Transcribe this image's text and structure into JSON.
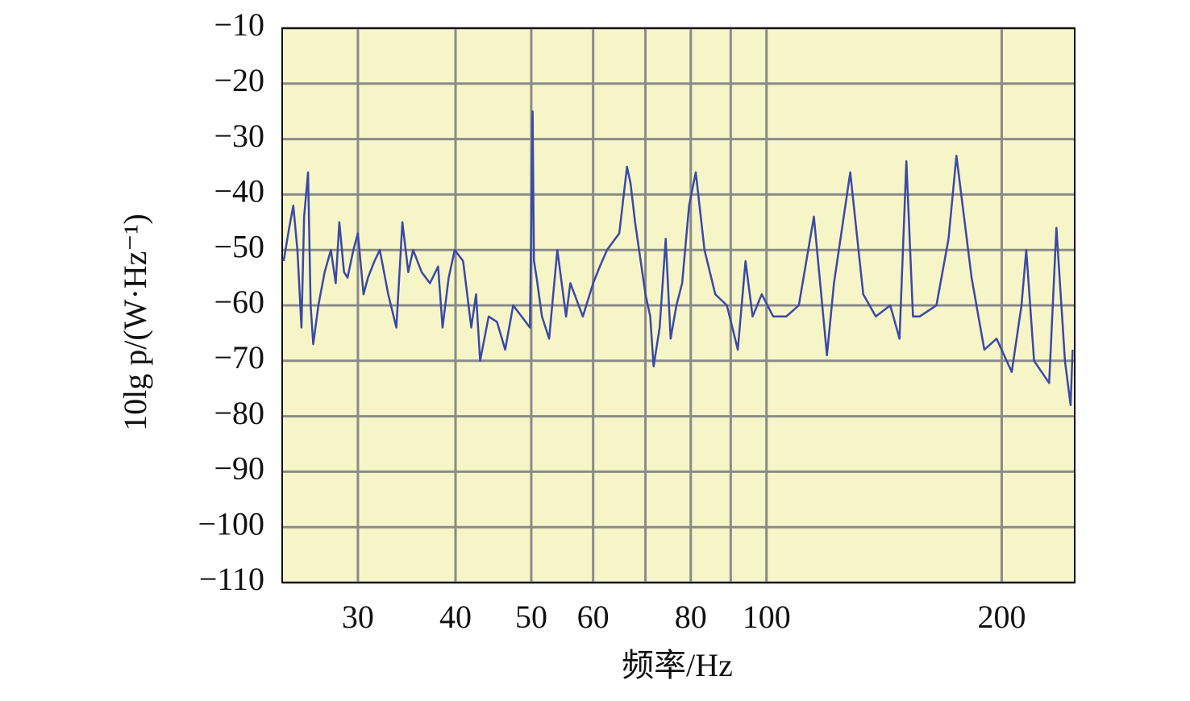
{
  "chart_data": {
    "type": "line",
    "x_label": "频率/Hz",
    "y_label": "10lg p/(W·Hz⁻¹)",
    "x_scale": "log",
    "xlim": [
      24,
      248
    ],
    "ylim": [
      -110,
      -10
    ],
    "xticks": [
      30,
      40,
      50,
      60,
      80,
      100,
      200
    ],
    "xminor": [
      70,
      90
    ],
    "yticks": [
      {
        "value": -10,
        "label": "−10"
      },
      {
        "value": -20,
        "label": "−20"
      },
      {
        "value": -30,
        "label": "−30"
      },
      {
        "value": -40,
        "label": "−40"
      },
      {
        "value": -50,
        "label": "−50"
      },
      {
        "value": -60,
        "label": "−60"
      },
      {
        "value": -70,
        "label": "−70"
      },
      {
        "value": -80,
        "label": "−80"
      },
      {
        "value": -90,
        "label": "−90"
      },
      {
        "value": -100,
        "label": "−100"
      },
      {
        "value": -110,
        "label": "−110"
      }
    ],
    "grid": true,
    "background": "#f6f5c8",
    "series": [
      {
        "color": "#3b48a6",
        "x": [
          24.1,
          24.5,
          24.8,
          25.1,
          25.4,
          25.6,
          25.9,
          26.1,
          26.3,
          26.7,
          27.2,
          27.7,
          28.1,
          28.4,
          28.8,
          29.1,
          29.6,
          30.0,
          30.5,
          30.9,
          31.5,
          32.0,
          32.8,
          33.6,
          34.2,
          34.8,
          35.3,
          36.2,
          37.1,
          38.0,
          38.5,
          39.2,
          39.9,
          40.9,
          41.4,
          41.9,
          42.5,
          43.0,
          44.1,
          45.2,
          46.3,
          47.4,
          48.6,
          49.8,
          50.2,
          50.4,
          50.8,
          51.6,
          52.7,
          54.0,
          55.4,
          56.1,
          56.8,
          58.2,
          60.0,
          61.2,
          62.5,
          64.8,
          66.3,
          67.0,
          67.9,
          70.0,
          71.0,
          71.7,
          73.0,
          74.3,
          75.4,
          76.7,
          78.0,
          79.6,
          81.2,
          83.3,
          86.0,
          89.0,
          91.9,
          94.0,
          96.0,
          98.6,
          102,
          106,
          110,
          115,
          119.5,
          122,
          128,
          133,
          138,
          144,
          148,
          151,
          154,
          157,
          165,
          171,
          175,
          183,
          190,
          197,
          206,
          212,
          215,
          220,
          230,
          235,
          241,
          245,
          246.5
        ],
        "values": [
          -52,
          -46,
          -42,
          -50,
          -64,
          -44,
          -36,
          -60,
          -67,
          -60,
          -54,
          -50,
          -56,
          -45,
          -54,
          -55,
          -50,
          -47,
          -58,
          -55,
          -52,
          -50,
          -58,
          -64,
          -45,
          -54,
          -50,
          -54,
          -56,
          -53,
          -64,
          -55,
          -50,
          -52,
          -58,
          -64,
          -58,
          -70,
          -62,
          -63,
          -68,
          -60,
          -62,
          -64,
          -25,
          -52,
          -55,
          -62,
          -66,
          -50,
          -62,
          -56,
          -58,
          -62,
          -56,
          -53,
          -50,
          -47,
          -35,
          -38,
          -45,
          -58,
          -62,
          -71,
          -64,
          -48,
          -66,
          -60,
          -56,
          -42,
          -36,
          -50,
          -58,
          -60,
          -68,
          -52,
          -62,
          -58,
          -62,
          -62,
          -60,
          -44,
          -69,
          -56,
          -36,
          -58,
          -62,
          -60,
          -66,
          -34,
          -62,
          -62,
          -60,
          -48,
          -33,
          -55,
          -68,
          -66,
          -72,
          -60,
          -50,
          -70,
          -74,
          -46,
          -70,
          -78,
          -68
        ]
      }
    ]
  }
}
